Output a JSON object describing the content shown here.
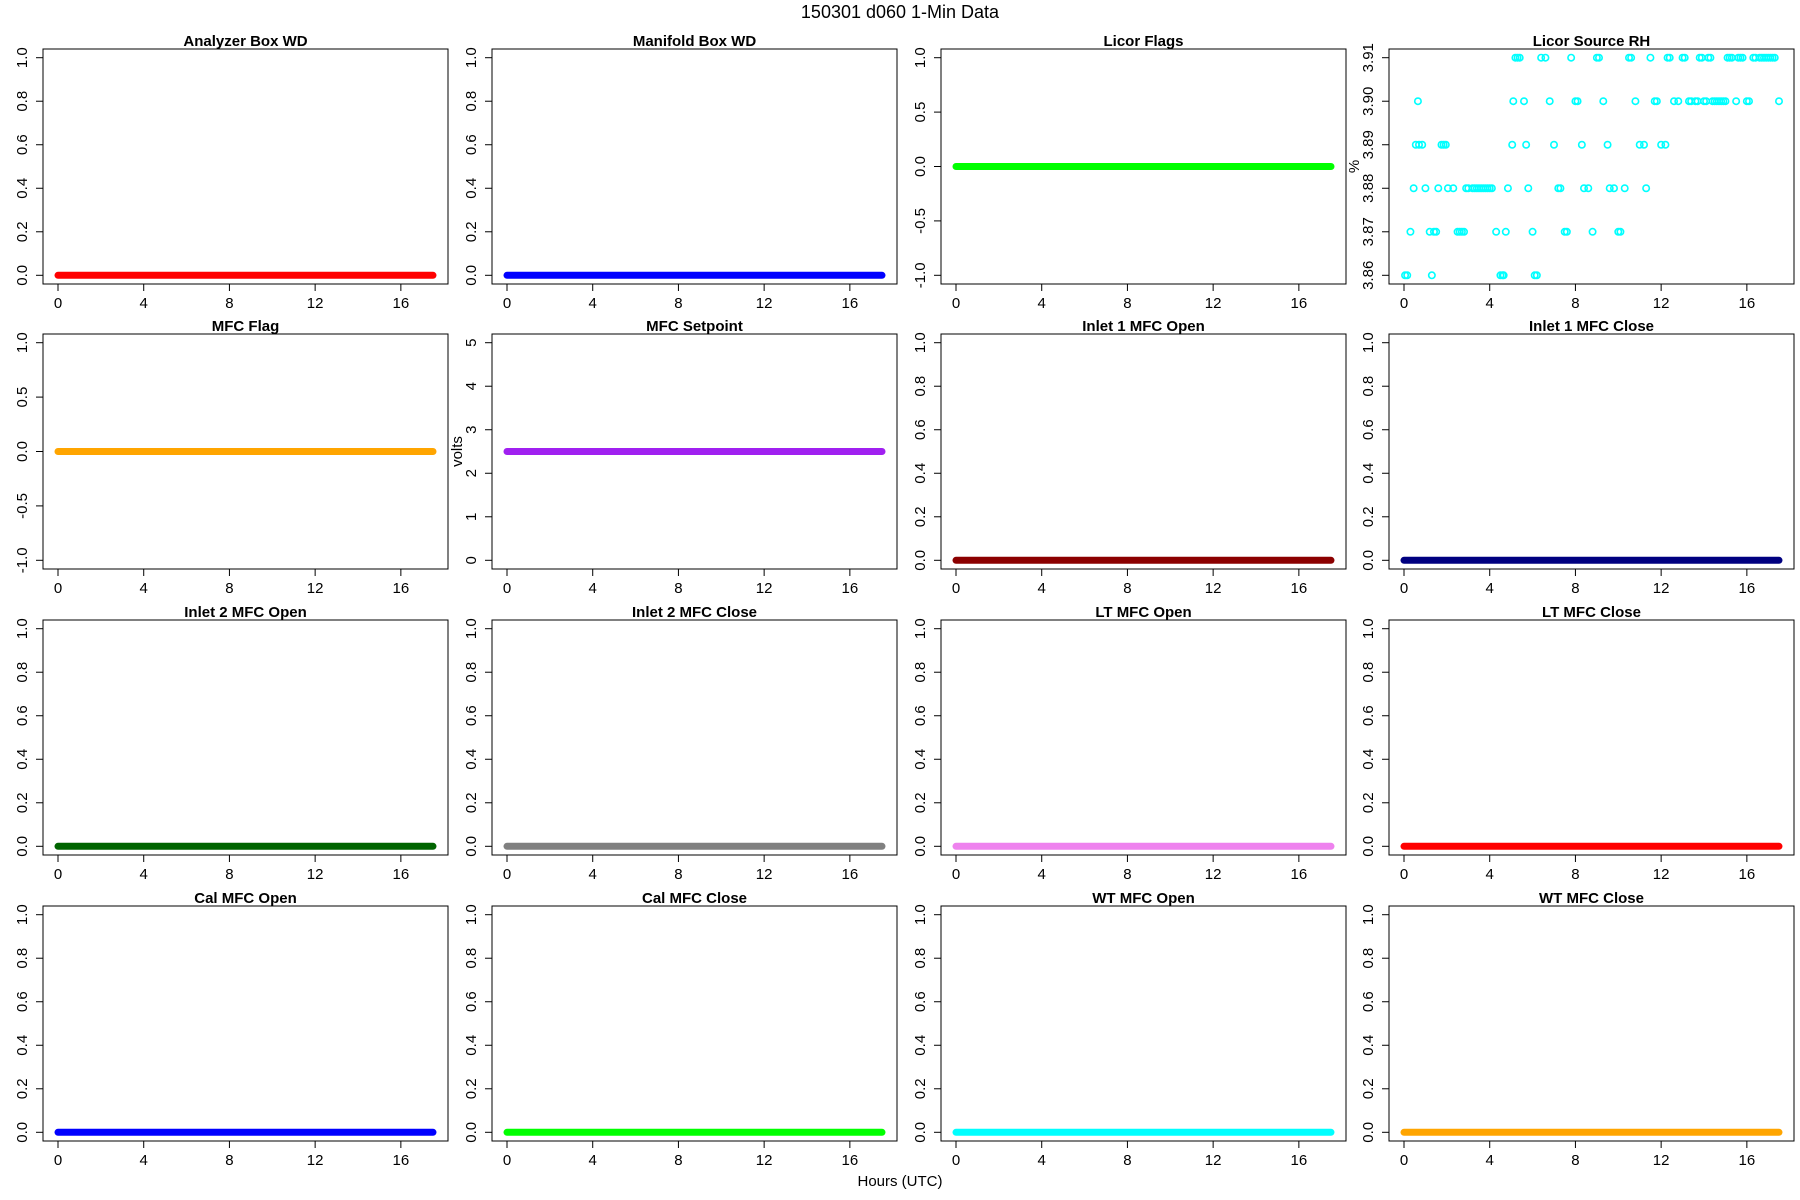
{
  "figure": {
    "title": "150301   d060   1-Min Data",
    "xlabel": "Hours (UTC)"
  },
  "chart_data": [
    {
      "type": "line",
      "title": "Analyzer Box WD",
      "ylabel": "",
      "color": "#ff0000",
      "xlim": [
        0,
        17.5
      ],
      "ylim": [
        0,
        1
      ],
      "x_ticks": [
        0,
        4,
        8,
        12,
        16
      ],
      "y_ticks": [
        0.0,
        0.2,
        0.4,
        0.6,
        0.8,
        1.0
      ],
      "y_tick_labels": [
        "0.0",
        "0.2",
        "0.4",
        "0.6",
        "0.8",
        "1.0"
      ],
      "series": [
        {
          "x": [
            0,
            17.5
          ],
          "y": [
            0,
            0
          ]
        }
      ]
    },
    {
      "type": "line",
      "title": "Manifold Box WD",
      "ylabel": "",
      "color": "#0000ff",
      "xlim": [
        0,
        17.5
      ],
      "ylim": [
        0,
        1
      ],
      "x_ticks": [
        0,
        4,
        8,
        12,
        16
      ],
      "y_ticks": [
        0.0,
        0.2,
        0.4,
        0.6,
        0.8,
        1.0
      ],
      "y_tick_labels": [
        "0.0",
        "0.2",
        "0.4",
        "0.6",
        "0.8",
        "1.0"
      ],
      "series": [
        {
          "x": [
            0,
            17.5
          ],
          "y": [
            0,
            0
          ]
        }
      ]
    },
    {
      "type": "line",
      "title": "Licor Flags",
      "ylabel": "",
      "color": "#00ff00",
      "xlim": [
        0,
        17.5
      ],
      "ylim": [
        -1,
        1
      ],
      "x_ticks": [
        0,
        4,
        8,
        12,
        16
      ],
      "y_ticks": [
        -1.0,
        -0.5,
        0.0,
        0.5,
        1.0
      ],
      "y_tick_labels": [
        "-1.0",
        "-0.5",
        "0.0",
        "0.5",
        "1.0"
      ],
      "series": [
        {
          "x": [
            0,
            17.5
          ],
          "y": [
            0,
            0
          ]
        }
      ]
    },
    {
      "type": "scatter",
      "title": "Licor Source RH",
      "ylabel": "%",
      "color": "#00ffff",
      "xlim": [
        0,
        17.5
      ],
      "ylim": [
        3.86,
        3.91
      ],
      "x_ticks": [
        0,
        4,
        8,
        12,
        16
      ],
      "y_ticks": [
        3.86,
        3.87,
        3.88,
        3.89,
        3.9,
        3.91
      ],
      "y_tick_labels": [
        "3.86",
        "3.87",
        "3.88",
        "3.89",
        "3.90",
        "3.91"
      ],
      "series": [
        {
          "x": [
            0.05,
            0.15,
            0.3,
            0.45,
            0.55,
            0.65,
            0.7,
            0.85,
            1.0,
            1.2,
            1.3,
            1.4,
            1.5,
            1.6,
            1.75,
            1.85,
            1.95,
            2.05,
            2.3,
            2.5,
            2.6,
            2.7,
            2.8,
            2.9,
            3.0,
            3.2,
            3.3,
            3.4,
            3.5,
            3.6,
            3.7,
            3.8,
            3.9,
            4.0,
            4.1,
            4.3,
            4.5,
            4.6,
            4.65,
            4.75,
            4.85,
            5.05,
            5.1,
            5.2,
            5.3,
            5.4,
            5.6,
            5.7,
            5.8,
            6.0,
            6.1,
            6.2,
            6.4,
            6.6,
            6.8,
            7.0,
            7.2,
            7.3,
            7.5,
            7.6,
            7.8,
            8.0,
            8.1,
            8.3,
            8.4,
            8.6,
            8.8,
            9.0,
            9.1,
            9.3,
            9.5,
            9.6,
            9.8,
            10.0,
            10.1,
            10.3,
            10.5,
            10.6,
            10.8,
            11.0,
            11.2,
            11.3,
            11.5,
            11.7,
            11.8,
            12.0,
            12.2,
            12.3,
            12.4,
            12.6,
            12.8,
            13.0,
            13.1,
            13.3,
            13.4,
            13.6,
            13.7,
            13.8,
            13.9,
            14.0,
            14.1,
            14.2,
            14.3,
            14.4,
            14.5,
            14.6,
            14.7,
            14.8,
            14.9,
            15.0,
            15.1,
            15.2,
            15.3,
            15.5,
            15.6,
            15.7,
            15.8,
            16.0,
            16.1,
            16.3,
            16.4,
            16.6,
            16.7,
            16.8,
            16.9,
            17.0,
            17.1,
            17.2,
            17.3,
            17.5
          ],
          "y": [
            3.86,
            3.86,
            3.87,
            3.88,
            3.89,
            3.9,
            3.89,
            3.89,
            3.88,
            3.87,
            3.86,
            3.87,
            3.87,
            3.88,
            3.89,
            3.89,
            3.89,
            3.88,
            3.88,
            3.87,
            3.87,
            3.87,
            3.87,
            3.88,
            3.88,
            3.88,
            3.88,
            3.88,
            3.88,
            3.88,
            3.88,
            3.88,
            3.88,
            3.88,
            3.88,
            3.87,
            3.86,
            3.86,
            3.86,
            3.87,
            3.88,
            3.89,
            3.9,
            3.91,
            3.91,
            3.91,
            3.9,
            3.89,
            3.88,
            3.87,
            3.86,
            3.86,
            3.91,
            3.91,
            3.9,
            3.89,
            3.88,
            3.88,
            3.87,
            3.87,
            3.91,
            3.9,
            3.9,
            3.89,
            3.88,
            3.88,
            3.87,
            3.91,
            3.91,
            3.9,
            3.89,
            3.88,
            3.88,
            3.87,
            3.87,
            3.88,
            3.91,
            3.91,
            3.9,
            3.89,
            3.89,
            3.88,
            3.91,
            3.9,
            3.9,
            3.89,
            3.89,
            3.91,
            3.91,
            3.9,
            3.9,
            3.91,
            3.91,
            3.9,
            3.9,
            3.9,
            3.9,
            3.91,
            3.91,
            3.9,
            3.9,
            3.91,
            3.91,
            3.9,
            3.9,
            3.9,
            3.9,
            3.9,
            3.9,
            3.9,
            3.91,
            3.91,
            3.91,
            3.9,
            3.91,
            3.91,
            3.91,
            3.9,
            3.9,
            3.91,
            3.91,
            3.91,
            3.91,
            3.91,
            3.91,
            3.91,
            3.91,
            3.91,
            3.91,
            3.9
          ]
        }
      ]
    },
    {
      "type": "line",
      "title": "MFC Flag",
      "ylabel": "",
      "color": "#ffa500",
      "xlim": [
        0,
        17.5
      ],
      "ylim": [
        -1,
        1
      ],
      "x_ticks": [
        0,
        4,
        8,
        12,
        16
      ],
      "y_ticks": [
        -1.0,
        -0.5,
        0.0,
        0.5,
        1.0
      ],
      "y_tick_labels": [
        "-1.0",
        "-0.5",
        "0.0",
        "0.5",
        "1.0"
      ],
      "series": [
        {
          "x": [
            0,
            17.5
          ],
          "y": [
            0,
            0
          ]
        }
      ]
    },
    {
      "type": "line",
      "title": "MFC Setpoint",
      "ylabel": "volts",
      "color": "#a020f0",
      "xlim": [
        0,
        17.5
      ],
      "ylim": [
        0,
        5
      ],
      "x_ticks": [
        0,
        4,
        8,
        12,
        16
      ],
      "y_ticks": [
        0,
        1,
        2,
        3,
        4,
        5
      ],
      "y_tick_labels": [
        "0",
        "1",
        "2",
        "3",
        "4",
        "5"
      ],
      "series": [
        {
          "x": [
            0,
            17.5
          ],
          "y": [
            2.5,
            2.5
          ]
        }
      ]
    },
    {
      "type": "line",
      "title": "Inlet 1 MFC Open",
      "ylabel": "",
      "color": "#8b0000",
      "xlim": [
        0,
        17.5
      ],
      "ylim": [
        0,
        1
      ],
      "x_ticks": [
        0,
        4,
        8,
        12,
        16
      ],
      "y_ticks": [
        0.0,
        0.2,
        0.4,
        0.6,
        0.8,
        1.0
      ],
      "y_tick_labels": [
        "0.0",
        "0.2",
        "0.4",
        "0.6",
        "0.8",
        "1.0"
      ],
      "series": [
        {
          "x": [
            0,
            17.5
          ],
          "y": [
            0,
            0
          ]
        }
      ]
    },
    {
      "type": "line",
      "title": "Inlet 1 MFC Close",
      "ylabel": "",
      "color": "#000080",
      "xlim": [
        0,
        17.5
      ],
      "ylim": [
        0,
        1
      ],
      "x_ticks": [
        0,
        4,
        8,
        12,
        16
      ],
      "y_ticks": [
        0.0,
        0.2,
        0.4,
        0.6,
        0.8,
        1.0
      ],
      "y_tick_labels": [
        "0.0",
        "0.2",
        "0.4",
        "0.6",
        "0.8",
        "1.0"
      ],
      "series": [
        {
          "x": [
            0,
            17.5
          ],
          "y": [
            0,
            0
          ]
        }
      ]
    },
    {
      "type": "line",
      "title": "Inlet 2 MFC Open",
      "ylabel": "",
      "color": "#006400",
      "xlim": [
        0,
        17.5
      ],
      "ylim": [
        0,
        1
      ],
      "x_ticks": [
        0,
        4,
        8,
        12,
        16
      ],
      "y_ticks": [
        0.0,
        0.2,
        0.4,
        0.6,
        0.8,
        1.0
      ],
      "y_tick_labels": [
        "0.0",
        "0.2",
        "0.4",
        "0.6",
        "0.8",
        "1.0"
      ],
      "series": [
        {
          "x": [
            0,
            17.5
          ],
          "y": [
            0,
            0
          ]
        }
      ]
    },
    {
      "type": "line",
      "title": "Inlet 2 MFC Close",
      "ylabel": "",
      "color": "#808080",
      "xlim": [
        0,
        17.5
      ],
      "ylim": [
        0,
        1
      ],
      "x_ticks": [
        0,
        4,
        8,
        12,
        16
      ],
      "y_ticks": [
        0.0,
        0.2,
        0.4,
        0.6,
        0.8,
        1.0
      ],
      "y_tick_labels": [
        "0.0",
        "0.2",
        "0.4",
        "0.6",
        "0.8",
        "1.0"
      ],
      "series": [
        {
          "x": [
            0,
            17.5
          ],
          "y": [
            0,
            0
          ]
        }
      ]
    },
    {
      "type": "line",
      "title": "LT MFC Open",
      "ylabel": "",
      "color": "#ee82ee",
      "xlim": [
        0,
        17.5
      ],
      "ylim": [
        0,
        1
      ],
      "x_ticks": [
        0,
        4,
        8,
        12,
        16
      ],
      "y_ticks": [
        0.0,
        0.2,
        0.4,
        0.6,
        0.8,
        1.0
      ],
      "y_tick_labels": [
        "0.0",
        "0.2",
        "0.4",
        "0.6",
        "0.8",
        "1.0"
      ],
      "series": [
        {
          "x": [
            0,
            17.5
          ],
          "y": [
            0,
            0
          ]
        }
      ]
    },
    {
      "type": "line",
      "title": "LT MFC Close",
      "ylabel": "",
      "color": "#ff0000",
      "xlim": [
        0,
        17.5
      ],
      "ylim": [
        0,
        1
      ],
      "x_ticks": [
        0,
        4,
        8,
        12,
        16
      ],
      "y_ticks": [
        0.0,
        0.2,
        0.4,
        0.6,
        0.8,
        1.0
      ],
      "y_tick_labels": [
        "0.0",
        "0.2",
        "0.4",
        "0.6",
        "0.8",
        "1.0"
      ],
      "series": [
        {
          "x": [
            0,
            17.5
          ],
          "y": [
            0,
            0
          ]
        }
      ]
    },
    {
      "type": "line",
      "title": "Cal MFC Open",
      "ylabel": "",
      "color": "#0000ff",
      "xlim": [
        0,
        17.5
      ],
      "ylim": [
        0,
        1
      ],
      "x_ticks": [
        0,
        4,
        8,
        12,
        16
      ],
      "y_ticks": [
        0.0,
        0.2,
        0.4,
        0.6,
        0.8,
        1.0
      ],
      "y_tick_labels": [
        "0.0",
        "0.2",
        "0.4",
        "0.6",
        "0.8",
        "1.0"
      ],
      "series": [
        {
          "x": [
            0,
            17.5
          ],
          "y": [
            0,
            0
          ]
        }
      ]
    },
    {
      "type": "line",
      "title": "Cal MFC Close",
      "ylabel": "",
      "color": "#00ff00",
      "xlim": [
        0,
        17.5
      ],
      "ylim": [
        0,
        1
      ],
      "x_ticks": [
        0,
        4,
        8,
        12,
        16
      ],
      "y_ticks": [
        0.0,
        0.2,
        0.4,
        0.6,
        0.8,
        1.0
      ],
      "y_tick_labels": [
        "0.0",
        "0.2",
        "0.4",
        "0.6",
        "0.8",
        "1.0"
      ],
      "series": [
        {
          "x": [
            0,
            17.5
          ],
          "y": [
            0,
            0
          ]
        }
      ]
    },
    {
      "type": "line",
      "title": "WT MFC Open",
      "ylabel": "",
      "color": "#00ffff",
      "xlim": [
        0,
        17.5
      ],
      "ylim": [
        0,
        1
      ],
      "x_ticks": [
        0,
        4,
        8,
        12,
        16
      ],
      "y_ticks": [
        0.0,
        0.2,
        0.4,
        0.6,
        0.8,
        1.0
      ],
      "y_tick_labels": [
        "0.0",
        "0.2",
        "0.4",
        "0.6",
        "0.8",
        "1.0"
      ],
      "series": [
        {
          "x": [
            0,
            17.5
          ],
          "y": [
            0,
            0
          ]
        }
      ]
    },
    {
      "type": "line",
      "title": "WT MFC Close",
      "ylabel": "",
      "color": "#ffa500",
      "xlim": [
        0,
        17.5
      ],
      "ylim": [
        0,
        1
      ],
      "x_ticks": [
        0,
        4,
        8,
        12,
        16
      ],
      "y_ticks": [
        0.0,
        0.2,
        0.4,
        0.6,
        0.8,
        1.0
      ],
      "y_tick_labels": [
        "0.0",
        "0.2",
        "0.4",
        "0.6",
        "0.8",
        "1.0"
      ],
      "series": [
        {
          "x": [
            0,
            17.5
          ],
          "y": [
            0,
            0
          ]
        }
      ]
    }
  ]
}
